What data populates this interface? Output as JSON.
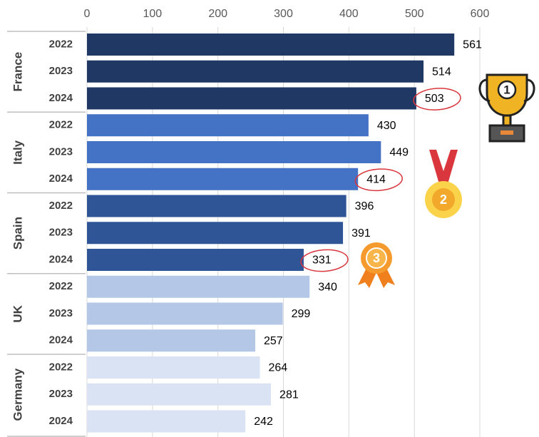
{
  "chart_data": {
    "type": "bar",
    "orientation": "horizontal",
    "xlim": [
      0,
      600
    ],
    "xticks": [
      0,
      100,
      200,
      300,
      400,
      500,
      600
    ],
    "grid": true,
    "groups": [
      {
        "name": "France",
        "color": "#1f3864",
        "categories": [
          "2022",
          "2023",
          "2024"
        ],
        "values": [
          561,
          514,
          503
        ],
        "medal": "1"
      },
      {
        "name": "Italy",
        "color": "#4472c4",
        "categories": [
          "2022",
          "2023",
          "2024"
        ],
        "values": [
          430,
          449,
          414
        ],
        "medal": "2"
      },
      {
        "name": "Spain",
        "color": "#2f5597",
        "categories": [
          "2022",
          "2023",
          "2024"
        ],
        "values": [
          396,
          391,
          331
        ],
        "medal": "3"
      },
      {
        "name": "UK",
        "color": "#b4c7e7",
        "categories": [
          "2022",
          "2023",
          "2024"
        ],
        "values": [
          340,
          299,
          257
        ]
      },
      {
        "name": "Germany",
        "color": "#dae3f3",
        "categories": [
          "2022",
          "2023",
          "2024"
        ],
        "values": [
          264,
          281,
          242
        ]
      }
    ]
  }
}
